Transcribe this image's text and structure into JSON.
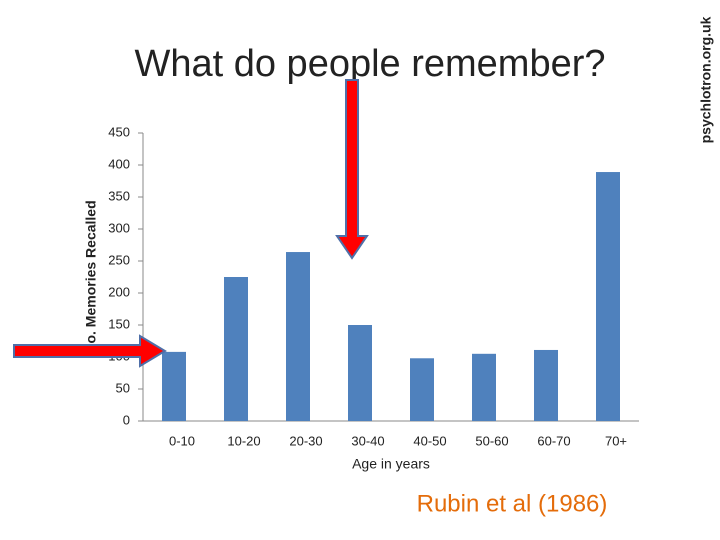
{
  "chart_data": {
    "type": "bar",
    "title": "What do people remember?",
    "x_label": "Age in years",
    "y_label": "No. Memories Recalled",
    "source": "Rubin et al (1986)",
    "watermark": "psychlotron.org.uk",
    "categories": [
      "0-10",
      "10-20",
      "20-30",
      "30-40",
      "40-50",
      "50-60",
      "60-70",
      "70+"
    ],
    "values": [
      108,
      225,
      264,
      150,
      98,
      105,
      111,
      389
    ],
    "color": "#4f81bd",
    "ylim": [
      0,
      450
    ],
    "yticks": [
      0,
      50,
      100,
      150,
      200,
      250,
      300,
      350,
      400,
      450
    ],
    "grid": false
  }
}
